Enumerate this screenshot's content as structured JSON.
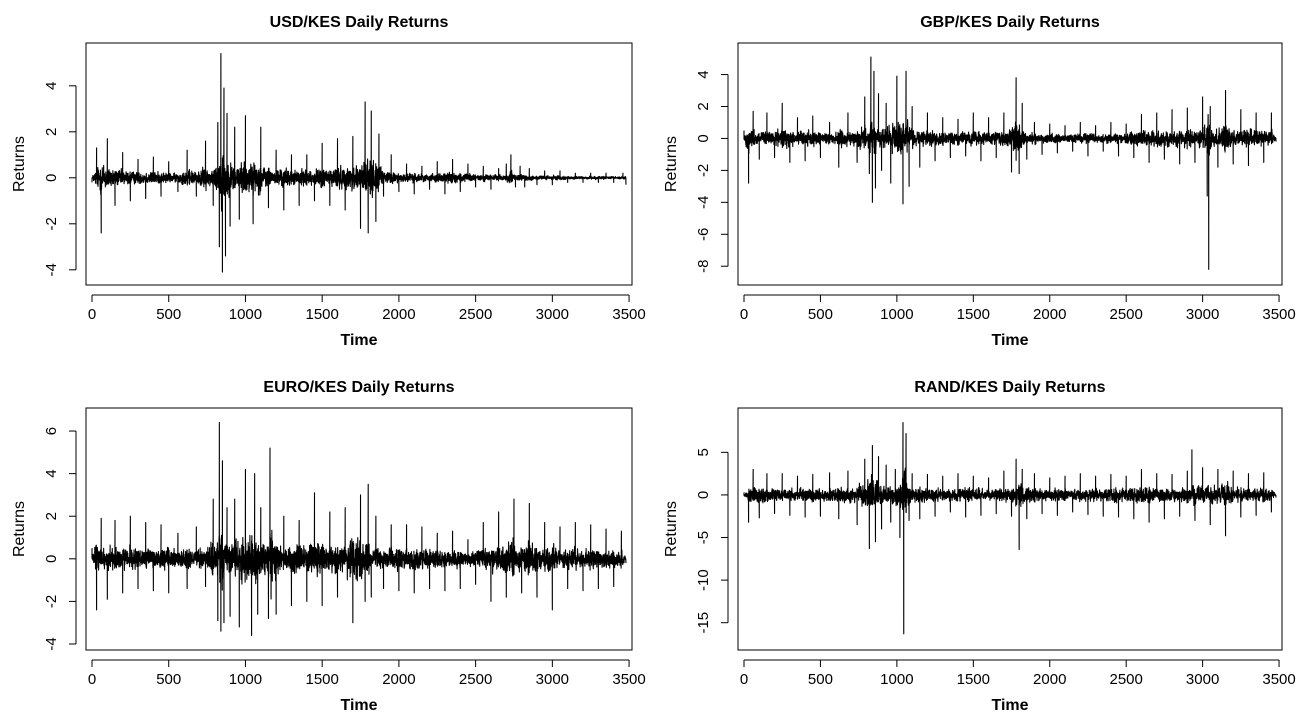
{
  "chart_data": [
    {
      "type": "line",
      "title": "USD/KES Daily Returns",
      "xlabel": "Time",
      "ylabel": "Returns",
      "xlim": [
        0,
        3480
      ],
      "ylim": [
        -4.4,
        5.6
      ],
      "x_ticks": [
        0,
        500,
        1000,
        1500,
        2000,
        2500,
        3000,
        3500
      ],
      "y_ticks": [
        -4,
        -2,
        0,
        2,
        4
      ],
      "grid": false,
      "series": [
        {
          "x": [
            0,
            30,
            60,
            100,
            150,
            200,
            250,
            300,
            350,
            400,
            450,
            500,
            560,
            620,
            680,
            740,
            790,
            820,
            830,
            840,
            850,
            860,
            870,
            880,
            900,
            930,
            960,
            1000,
            1050,
            1100,
            1150,
            1200,
            1250,
            1300,
            1350,
            1400,
            1450,
            1500,
            1550,
            1600,
            1650,
            1700,
            1750,
            1780,
            1800,
            1820,
            1850,
            1870,
            1900,
            1950,
            2000,
            2050,
            2100,
            2150,
            2200,
            2250,
            2300,
            2350,
            2400,
            2450,
            2500,
            2550,
            2600,
            2650,
            2700,
            2730,
            2760,
            2790,
            2820,
            2850,
            2900,
            2950,
            3000,
            3050,
            3100,
            3150,
            3200,
            3250,
            3300,
            3350,
            3400,
            3460,
            3480
          ],
          "values": [
            -0.2,
            1.3,
            -2.4,
            1.7,
            -1.2,
            1.1,
            -1.0,
            0.8,
            -0.9,
            0.9,
            -0.8,
            0.7,
            -0.6,
            1.2,
            -0.8,
            1.6,
            -1.2,
            2.4,
            -3.0,
            5.4,
            -4.1,
            3.9,
            -3.4,
            2.8,
            -2.1,
            2.2,
            -1.8,
            2.7,
            -2.0,
            2.2,
            -1.3,
            1.2,
            -1.4,
            1.0,
            -1.2,
            1.0,
            -1.0,
            1.5,
            -1.2,
            1.7,
            -1.4,
            1.8,
            -2.2,
            3.3,
            -2.4,
            2.9,
            -1.9,
            1.9,
            -0.8,
            1.0,
            -0.6,
            0.6,
            -0.7,
            0.5,
            -0.5,
            0.7,
            -0.7,
            0.8,
            -0.6,
            0.6,
            -0.4,
            0.5,
            -0.5,
            0.4,
            0.6,
            1.0,
            -0.4,
            0.5,
            -0.4,
            0.4,
            -0.3,
            0.3,
            -0.3,
            0.3,
            -0.2,
            0.2,
            -0.2,
            0.2,
            -0.2,
            0.2,
            -0.2,
            0.2,
            -0.3
          ]
        }
      ]
    },
    {
      "type": "line",
      "title": "GBP/KES Daily Returns",
      "xlabel": "Time",
      "ylabel": "Returns",
      "xlim": [
        0,
        3480
      ],
      "ylim": [
        -8.8,
        5.6
      ],
      "x_ticks": [
        0,
        500,
        1000,
        1500,
        2000,
        2500,
        3000,
        3500
      ],
      "y_ticks": [
        -8,
        -6,
        -4,
        -2,
        0,
        2,
        4
      ],
      "grid": false,
      "series": [
        {
          "x": [
            0,
            30,
            60,
            100,
            150,
            200,
            250,
            300,
            350,
            400,
            450,
            500,
            560,
            620,
            680,
            740,
            790,
            820,
            830,
            840,
            850,
            860,
            880,
            900,
            930,
            960,
            1000,
            1040,
            1060,
            1080,
            1100,
            1150,
            1200,
            1250,
            1300,
            1350,
            1400,
            1450,
            1500,
            1550,
            1600,
            1650,
            1700,
            1750,
            1780,
            1800,
            1820,
            1850,
            1900,
            1950,
            2000,
            2050,
            2100,
            2150,
            2200,
            2250,
            2300,
            2350,
            2400,
            2450,
            2500,
            2550,
            2600,
            2650,
            2700,
            2750,
            2800,
            2850,
            2900,
            2950,
            3000,
            3030,
            3040,
            3050,
            3100,
            3150,
            3200,
            3250,
            3300,
            3350,
            3400,
            3450,
            3480
          ],
          "values": [
            0.5,
            -2.8,
            1.7,
            -1.3,
            1.6,
            -1.2,
            2.2,
            -1.5,
            1.3,
            -1.4,
            1.4,
            -1.2,
            1.0,
            -1.8,
            1.6,
            -1.5,
            2.6,
            -2.2,
            5.1,
            -4.0,
            4.2,
            -3.1,
            2.8,
            -2.0,
            2.2,
            -2.8,
            3.9,
            -4.1,
            4.2,
            -3.0,
            2.0,
            -1.8,
            1.6,
            -1.4,
            1.3,
            -1.2,
            1.2,
            -1.1,
            1.6,
            -1.4,
            1.3,
            -1.2,
            1.6,
            -2.1,
            3.8,
            -2.2,
            2.2,
            -1.3,
            1.0,
            -1.0,
            0.9,
            -0.9,
            0.8,
            -0.8,
            1.0,
            -1.1,
            0.8,
            -0.8,
            1.0,
            -1.1,
            0.9,
            -1.2,
            1.5,
            -1.5,
            1.6,
            -1.3,
            1.8,
            -1.6,
            1.9,
            -1.5,
            2.6,
            -3.6,
            -8.2,
            2.0,
            -1.8,
            3.0,
            -1.6,
            1.8,
            -1.7,
            1.6,
            -1.5,
            1.6,
            -0.2
          ]
        }
      ]
    },
    {
      "type": "line",
      "title": "EURO/KES Daily Returns",
      "xlabel": "Time",
      "ylabel": "Returns",
      "xlim": [
        0,
        3480
      ],
      "ylim": [
        -4.0,
        6.8
      ],
      "x_ticks": [
        0,
        500,
        1000,
        1500,
        2000,
        2500,
        3000,
        3500
      ],
      "y_ticks": [
        -4,
        -2,
        0,
        2,
        4,
        6
      ],
      "grid": false,
      "series": [
        {
          "x": [
            0,
            30,
            60,
            100,
            150,
            200,
            250,
            300,
            350,
            400,
            450,
            500,
            560,
            620,
            680,
            740,
            790,
            820,
            830,
            840,
            850,
            860,
            880,
            900,
            930,
            960,
            1000,
            1040,
            1060,
            1080,
            1100,
            1150,
            1160,
            1200,
            1250,
            1300,
            1350,
            1400,
            1450,
            1500,
            1550,
            1600,
            1650,
            1700,
            1750,
            1780,
            1800,
            1820,
            1850,
            1900,
            1950,
            2000,
            2050,
            2100,
            2150,
            2200,
            2250,
            2300,
            2350,
            2400,
            2450,
            2500,
            2550,
            2600,
            2650,
            2700,
            2750,
            2800,
            2850,
            2900,
            2950,
            3000,
            3050,
            3100,
            3150,
            3200,
            3250,
            3300,
            3350,
            3400,
            3450,
            3480
          ],
          "values": [
            0.5,
            -2.4,
            1.9,
            -1.9,
            1.8,
            -1.6,
            2.0,
            -1.4,
            1.7,
            -1.5,
            1.6,
            -1.6,
            1.2,
            -1.4,
            1.5,
            -1.3,
            2.8,
            -2.9,
            6.4,
            -3.4,
            4.6,
            -3.0,
            2.4,
            -2.7,
            2.8,
            -3.2,
            4.2,
            -3.6,
            4.0,
            -2.6,
            2.4,
            -2.8,
            5.2,
            -2.6,
            2.0,
            -2.2,
            1.8,
            -2.0,
            3.1,
            -2.2,
            2.2,
            -1.8,
            2.4,
            -3.0,
            3.0,
            -2.0,
            3.5,
            -1.8,
            2.0,
            -1.4,
            1.6,
            -1.5,
            1.6,
            -1.6,
            1.5,
            -1.4,
            1.2,
            -1.5,
            1.3,
            -1.4,
            0.9,
            -1.2,
            1.7,
            -2.0,
            2.2,
            -1.8,
            2.8,
            -1.6,
            2.6,
            -1.8,
            1.7,
            -2.4,
            1.5,
            -1.4,
            1.7,
            -1.5,
            1.6,
            -1.4,
            1.4,
            -1.3,
            1.3,
            -0.2
          ]
        }
      ]
    },
    {
      "type": "line",
      "title": "RAND/KES Daily Returns",
      "xlabel": "Time",
      "ylabel": "Returns",
      "xlim": [
        0,
        3480
      ],
      "ylim": [
        -17.5,
        9.5
      ],
      "x_ticks": [
        0,
        500,
        1000,
        1500,
        2000,
        2500,
        3000,
        3500
      ],
      "y_ticks": [
        -15,
        -10,
        -5,
        0,
        5
      ],
      "grid": false,
      "series": [
        {
          "x": [
            0,
            30,
            60,
            100,
            150,
            200,
            250,
            300,
            350,
            400,
            450,
            500,
            560,
            620,
            680,
            740,
            790,
            820,
            840,
            860,
            880,
            900,
            930,
            960,
            990,
            1020,
            1040,
            1045,
            1060,
            1080,
            1100,
            1150,
            1200,
            1250,
            1300,
            1350,
            1400,
            1450,
            1500,
            1550,
            1600,
            1650,
            1700,
            1750,
            1780,
            1800,
            1820,
            1850,
            1900,
            1950,
            2000,
            2050,
            2100,
            2150,
            2200,
            2250,
            2300,
            2350,
            2400,
            2450,
            2500,
            2550,
            2600,
            2650,
            2700,
            2750,
            2800,
            2850,
            2900,
            2930,
            2950,
            3000,
            3050,
            3100,
            3150,
            3200,
            3250,
            3300,
            3350,
            3400,
            3450,
            3480
          ],
          "values": [
            0.3,
            -3.2,
            3.0,
            -2.7,
            2.5,
            -2.2,
            2.5,
            -2.4,
            2.2,
            -2.6,
            2.4,
            -2.5,
            2.6,
            -2.8,
            2.8,
            -3.5,
            4.2,
            -6.3,
            5.8,
            -5.5,
            4.5,
            -4.0,
            3.5,
            -3.2,
            3.0,
            -5.0,
            8.5,
            -16.3,
            7.2,
            -3.0,
            2.5,
            -2.8,
            2.4,
            -2.5,
            2.2,
            -2.0,
            2.5,
            -2.6,
            2.2,
            -2.4,
            2.0,
            -2.2,
            2.8,
            -2.5,
            4.2,
            -6.4,
            3.0,
            -2.8,
            2.5,
            -2.2,
            2.0,
            -2.4,
            2.2,
            -2.0,
            2.5,
            -2.3,
            2.2,
            -2.5,
            2.4,
            -2.6,
            2.2,
            -2.8,
            3.0,
            -3.2,
            2.5,
            -2.8,
            2.4,
            -2.5,
            2.8,
            5.3,
            -3.0,
            3.2,
            -3.5,
            3.0,
            -4.8,
            2.8,
            -2.6,
            2.5,
            -2.4,
            2.6,
            -2.0,
            -0.3
          ]
        }
      ]
    }
  ]
}
